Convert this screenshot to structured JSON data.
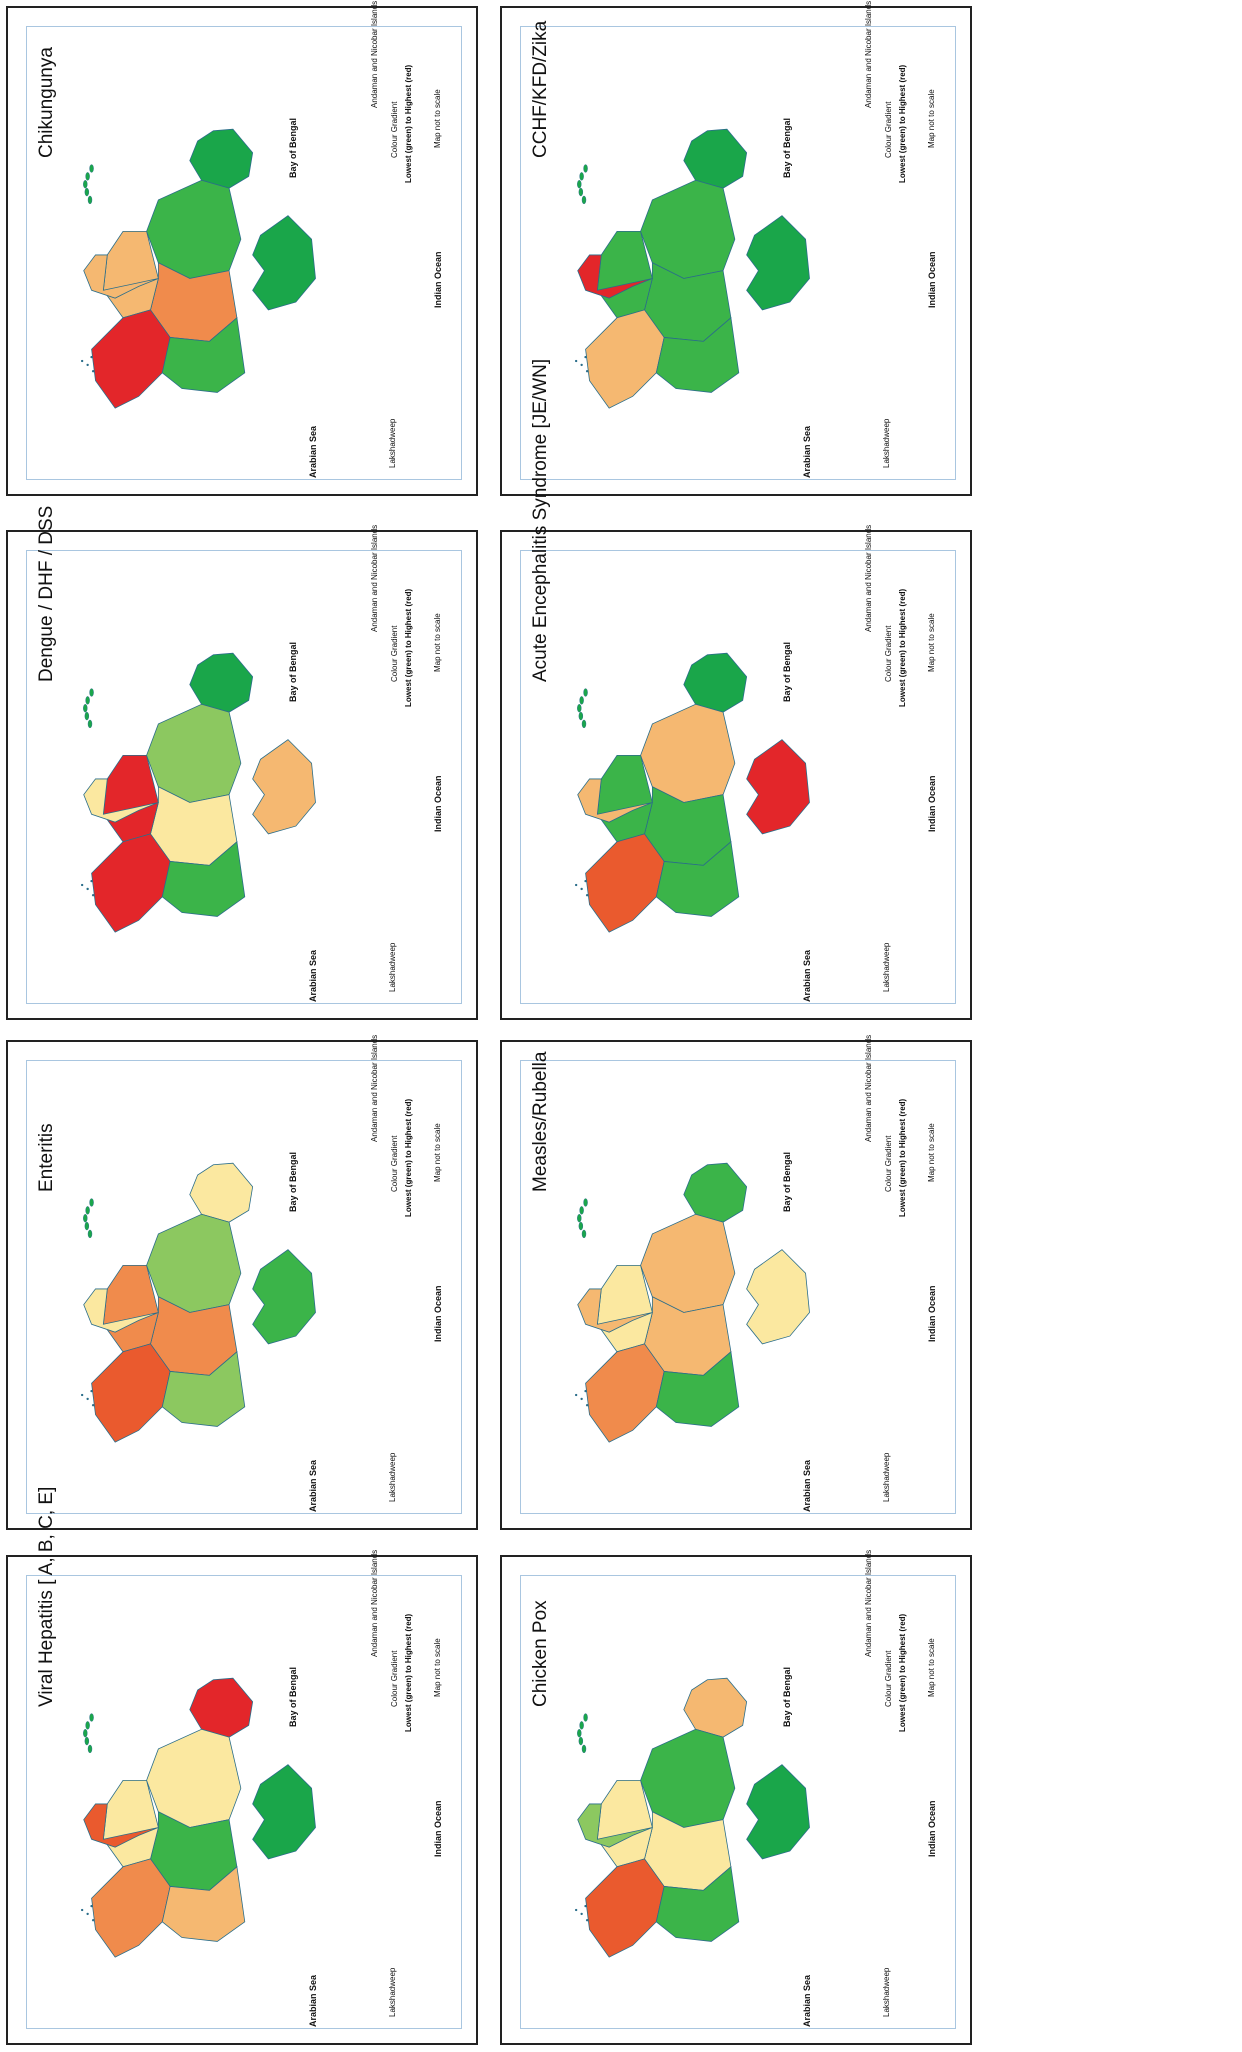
{
  "legend": {
    "line1": "Colour Gradient",
    "line2": "Lowest (green) to Highest (red)",
    "scale_note": "Map not to scale"
  },
  "map_labels": {
    "bay_of_bengal": "Bay of Bengal",
    "arabian_sea": "Arabian Sea",
    "indian_ocean": "Indian Ocean",
    "lakshadweep": "Lakshadweep",
    "andaman": "Andaman and Nicobar Islands"
  },
  "colors": {
    "green_dark": "#1aa64a",
    "green": "#3bb449",
    "green_light": "#8cc860",
    "yellow_light": "#fbe8a0",
    "orange_light": "#f5b871",
    "orange": "#f08b4c",
    "orange_red": "#ea5a2e",
    "red": "#e3262a"
  },
  "panels": [
    {
      "title": "Chikungunya",
      "regions": {
        "north": "green_dark",
        "west": "green",
        "central": "orange",
        "south": "red",
        "east": "green",
        "northeast": "green_dark",
        "southwest": "orange_light",
        "gujarat": "orange_light"
      }
    },
    {
      "title": "Dengue / DHF / DSS",
      "regions": {
        "north": "green_dark",
        "west": "green_light",
        "central": "yellow_light",
        "south": "red",
        "east": "green",
        "northeast": "orange_light",
        "southwest": "red",
        "gujarat": "yellow_light"
      }
    },
    {
      "title": "Enteritis",
      "regions": {
        "north": "yellow_light",
        "west": "green_light",
        "central": "orange",
        "south": "orange_red",
        "east": "green_light",
        "northeast": "green",
        "southwest": "orange",
        "gujarat": "yellow_light"
      }
    },
    {
      "title": "Viral Hepatitis [ A, B, C, E]",
      "regions": {
        "north": "red",
        "west": "yellow_light",
        "central": "green",
        "south": "orange",
        "east": "orange_light",
        "northeast": "green_dark",
        "southwest": "yellow_light",
        "gujarat": "orange_red"
      }
    },
    {
      "title": "CCHF/KFD/Zika",
      "regions": {
        "north": "green_dark",
        "west": "green",
        "central": "green",
        "south": "orange_light",
        "east": "green",
        "northeast": "green_dark",
        "southwest": "green",
        "gujarat": "red"
      }
    },
    {
      "title": "Acute Encephalitis Syndrome [JE/WN]",
      "regions": {
        "north": "green_dark",
        "west": "orange_light",
        "central": "green",
        "south": "orange_red",
        "east": "green",
        "northeast": "red",
        "southwest": "green",
        "gujarat": "orange_light"
      }
    },
    {
      "title": "Measles/Rubella",
      "regions": {
        "north": "green",
        "west": "orange_light",
        "central": "orange_light",
        "south": "orange",
        "east": "green",
        "northeast": "yellow_light",
        "southwest": "yellow_light",
        "gujarat": "orange_light"
      }
    },
    {
      "title": "Chicken Pox",
      "regions": {
        "north": "orange_light",
        "west": "green",
        "central": "yellow_light",
        "south": "orange_red",
        "east": "green",
        "northeast": "green_dark",
        "southwest": "yellow_light",
        "gujarat": "green_light"
      }
    }
  ]
}
